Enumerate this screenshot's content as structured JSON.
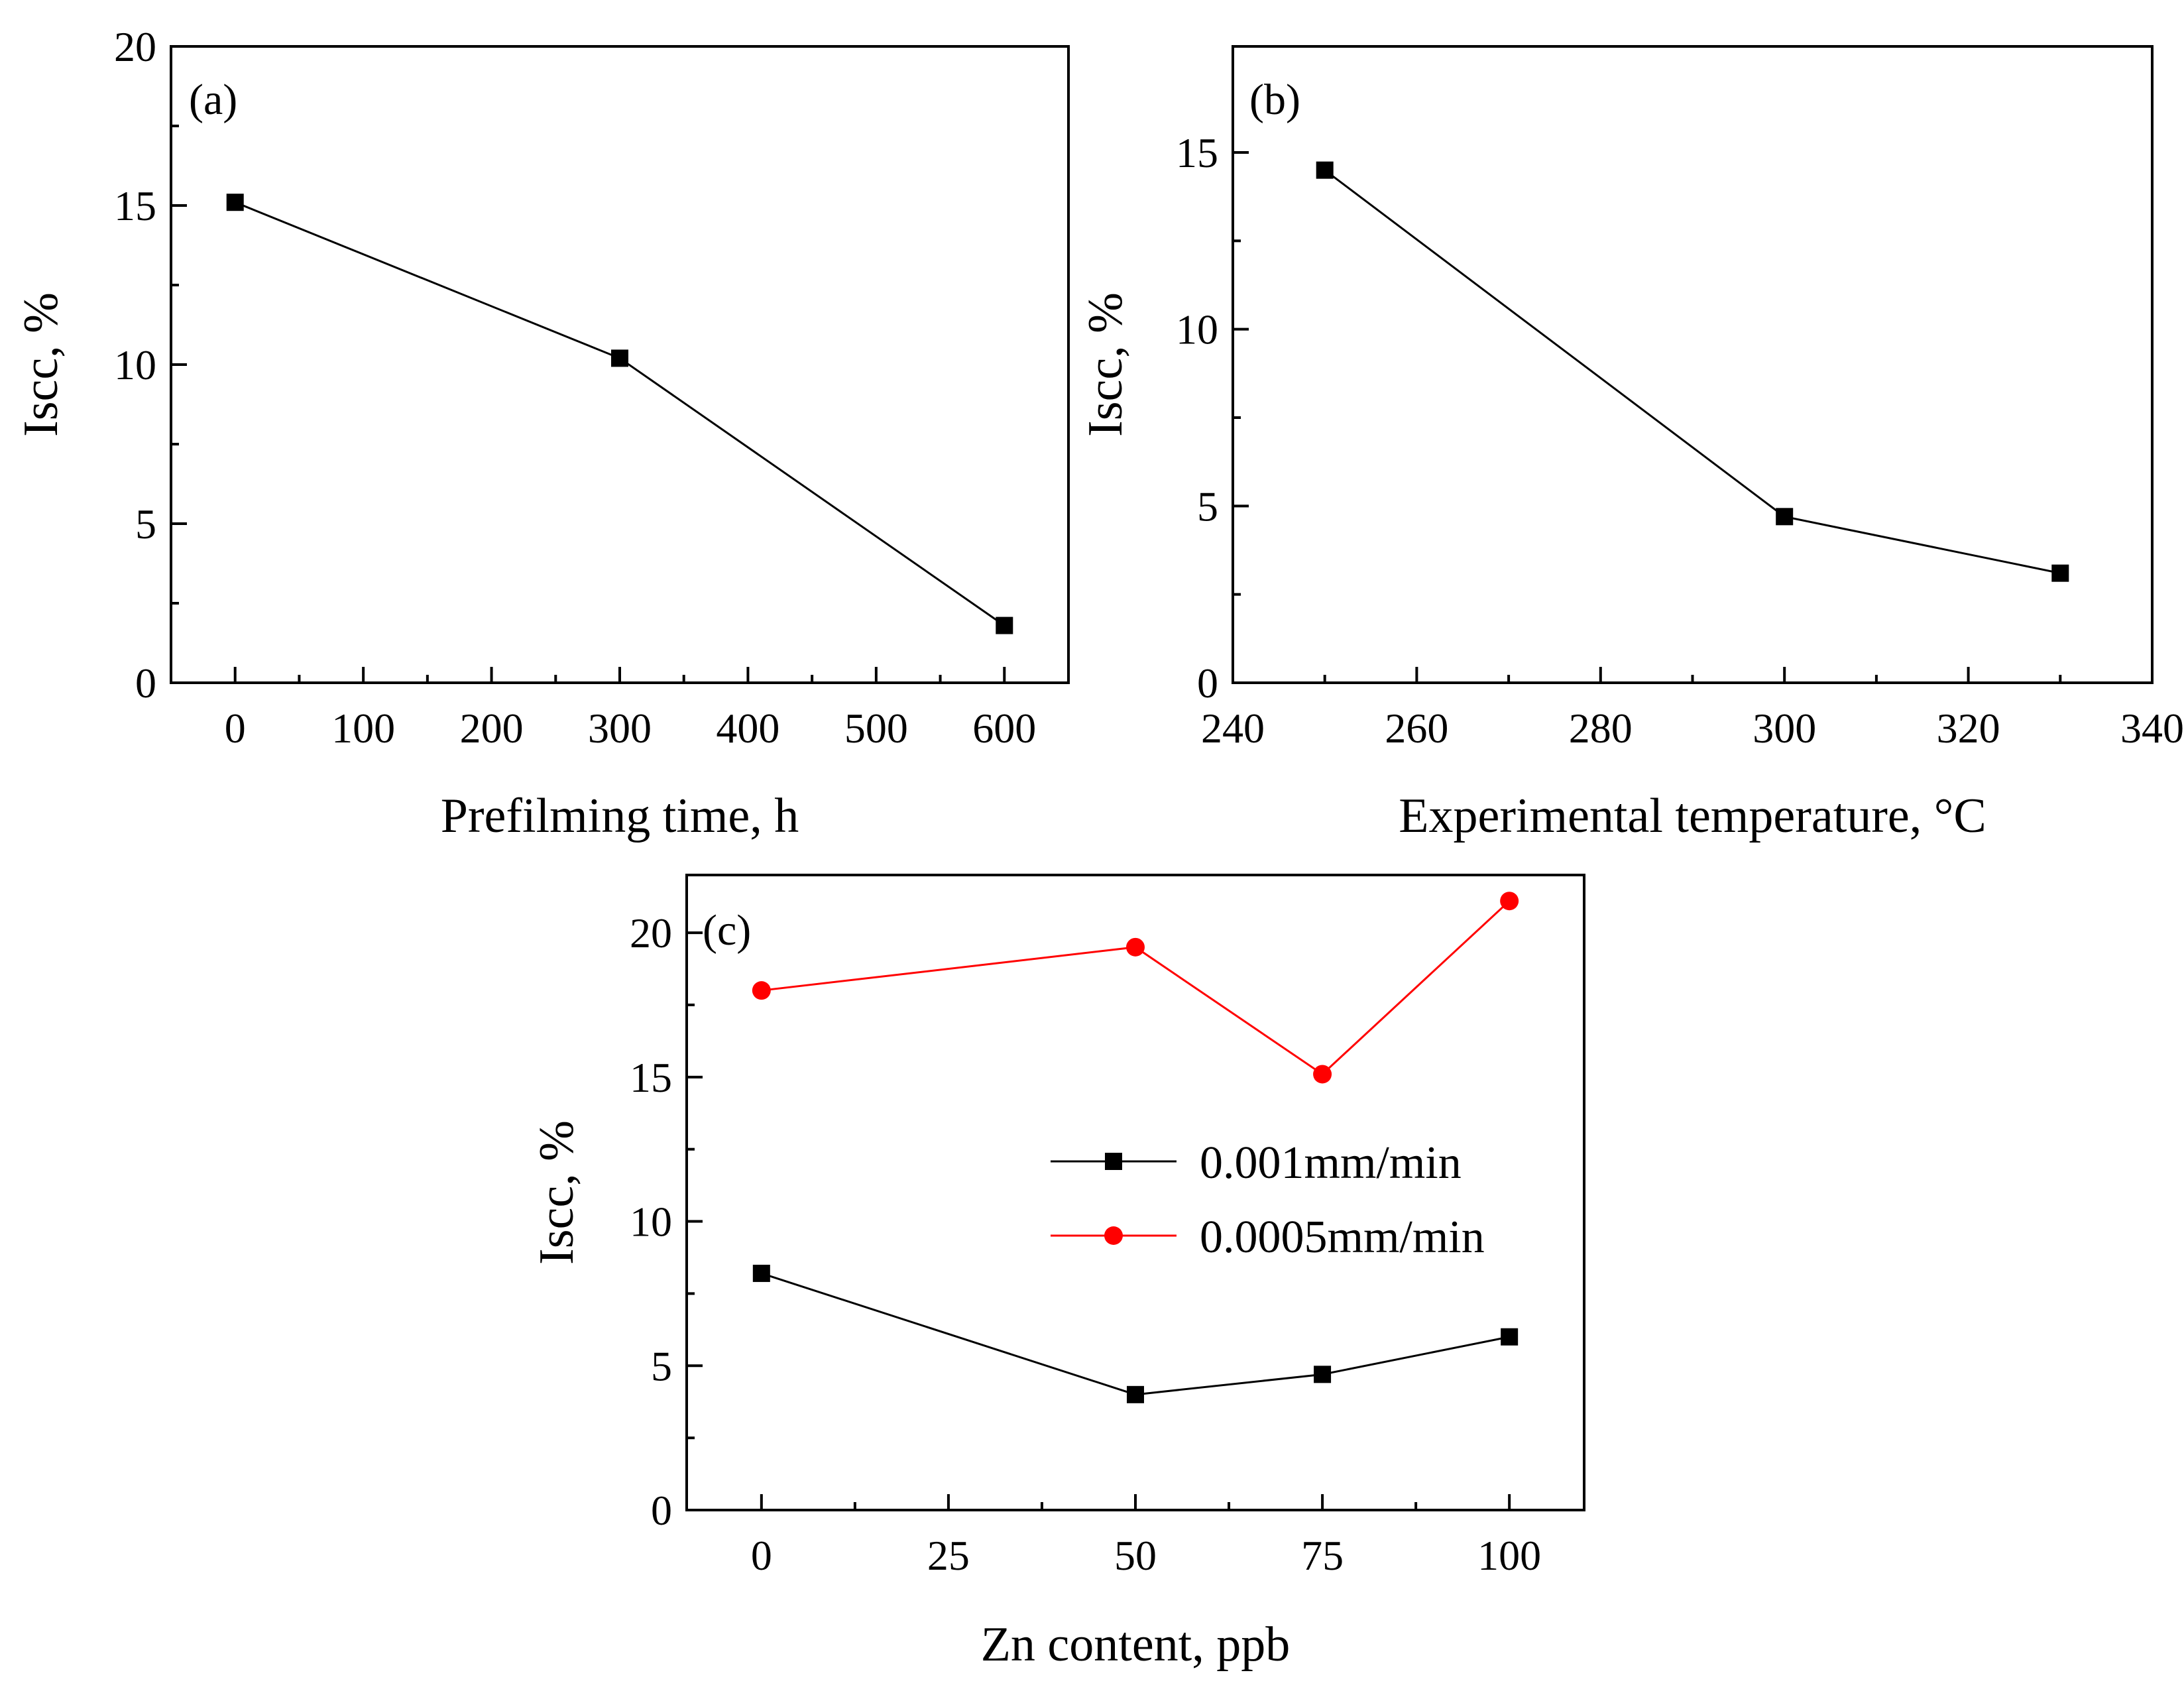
{
  "chart_data": [
    {
      "id": "a",
      "type": "line",
      "panel_label": "(a)",
      "xlabel": "Prefilming time, h",
      "ylabel": "Iscc, %",
      "xlim": [
        -50,
        650
      ],
      "ylim": [
        0,
        20
      ],
      "xticks": [
        0,
        100,
        200,
        300,
        400,
        500,
        600
      ],
      "xtick_labels": [
        "0",
        "100",
        "200",
        "300",
        "400",
        "500",
        "600"
      ],
      "yticks": [
        0,
        5,
        10,
        15,
        20
      ],
      "ytick_labels": [
        "0",
        "5",
        "10",
        "15",
        "20"
      ],
      "series": [
        {
          "name": "",
          "marker": "square",
          "color": "#000000",
          "x": [
            0,
            300,
            600
          ],
          "y": [
            15.1,
            10.2,
            1.8
          ]
        }
      ]
    },
    {
      "id": "b",
      "type": "line",
      "panel_label": "(b)",
      "xlabel": "Experimental temperature, °C",
      "ylabel": "Iscc, %",
      "xlim": [
        240,
        340
      ],
      "ylim": [
        0,
        18
      ],
      "xticks": [
        240,
        260,
        280,
        300,
        320,
        340
      ],
      "xtick_labels": [
        "240",
        "260",
        "280",
        "300",
        "320",
        "340"
      ],
      "yticks": [
        0,
        5,
        10,
        15
      ],
      "ytick_labels": [
        "0",
        "5",
        "10",
        "15"
      ],
      "series": [
        {
          "name": "",
          "marker": "square",
          "color": "#000000",
          "x": [
            250,
            300,
            330
          ],
          "y": [
            14.5,
            4.7,
            3.1
          ]
        }
      ]
    },
    {
      "id": "c",
      "type": "line",
      "panel_label": "(c)",
      "xlabel": "Zn content, ppb",
      "ylabel": "Iscc, %",
      "xlim": [
        -10,
        110
      ],
      "ylim": [
        0,
        22
      ],
      "xticks": [
        0,
        25,
        50,
        75,
        100
      ],
      "xtick_labels": [
        "0",
        "25",
        "50",
        "75",
        "100"
      ],
      "yticks": [
        0,
        5,
        10,
        15,
        20
      ],
      "ytick_labels": [
        "0",
        "5",
        "10",
        "15",
        "20"
      ],
      "series": [
        {
          "name": "0.001mm/min",
          "marker": "square",
          "color": "#000000",
          "x": [
            0,
            50,
            75,
            100
          ],
          "y": [
            8.2,
            4.0,
            4.7,
            6.0
          ]
        },
        {
          "name": "0.0005mm/min",
          "marker": "circle",
          "color": "#ff0000",
          "x": [
            0,
            50,
            75,
            100
          ],
          "y": [
            18.0,
            19.5,
            15.1,
            21.1
          ]
        }
      ]
    }
  ]
}
